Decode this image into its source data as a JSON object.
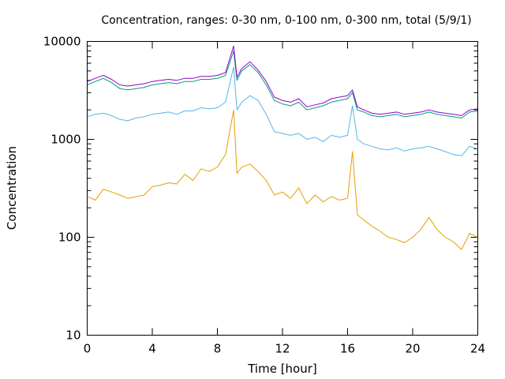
{
  "chart_data": {
    "type": "line",
    "title": "Concentration, ranges: 0-30 nm, 0-100 nm, 0-300 nm, total (5/9/1)",
    "xlabel": "Time [hour]",
    "ylabel": "Concentration",
    "xlim": [
      0,
      24
    ],
    "ylim": [
      10,
      10000
    ],
    "yscale": "log",
    "grid": false,
    "xticks": [
      0,
      4,
      8,
      12,
      16,
      20,
      24
    ],
    "xtick_labels": [
      "0",
      "4",
      "8",
      "12",
      "16",
      "20",
      "24"
    ],
    "yticks": [
      10,
      100,
      1000,
      10000
    ],
    "ytick_labels": [
      "10",
      "100",
      "1000",
      "10000"
    ],
    "x": [
      0,
      0.5,
      1,
      1.5,
      2,
      2.5,
      3,
      3.5,
      4,
      4.5,
      5,
      5.5,
      6,
      6.5,
      7,
      7.5,
      8,
      8.5,
      9,
      9.2,
      9.5,
      10,
      10.5,
      11,
      11.5,
      12,
      12.5,
      13,
      13.5,
      14,
      14.5,
      15,
      15.5,
      16,
      16.3,
      16.6,
      17,
      17.5,
      18,
      18.5,
      19,
      19.5,
      20,
      20.5,
      21,
      21.5,
      22,
      22.5,
      23,
      23.5,
      24
    ],
    "series": [
      {
        "color": "#e69f00",
        "values": [
          260,
          240,
          310,
          290,
          270,
          250,
          260,
          270,
          330,
          340,
          360,
          350,
          440,
          380,
          500,
          470,
          520,
          700,
          2000,
          450,
          520,
          560,
          470,
          380,
          270,
          290,
          250,
          320,
          220,
          270,
          230,
          260,
          240,
          250,
          750,
          170,
          150,
          130,
          115,
          100,
          95,
          88,
          100,
          120,
          160,
          120,
          100,
          90,
          75,
          110,
          100
        ]
      },
      {
        "color": "#56b4e9",
        "values": [
          1700,
          1800,
          1850,
          1750,
          1600,
          1550,
          1650,
          1700,
          1800,
          1850,
          1900,
          1800,
          1950,
          1950,
          2100,
          2050,
          2100,
          2400,
          5500,
          2000,
          2400,
          2800,
          2500,
          1800,
          1200,
          1150,
          1100,
          1150,
          1000,
          1050,
          950,
          1100,
          1050,
          1100,
          2200,
          1000,
          900,
          850,
          800,
          780,
          820,
          760,
          800,
          820,
          850,
          800,
          750,
          700,
          680,
          850,
          800
        ]
      },
      {
        "color": "#009e73",
        "values": [
          3600,
          3900,
          4200,
          3800,
          3300,
          3200,
          3300,
          3400,
          3600,
          3700,
          3800,
          3700,
          3900,
          3900,
          4100,
          4100,
          4200,
          4500,
          8000,
          4000,
          5000,
          5800,
          4800,
          3600,
          2500,
          2300,
          2200,
          2400,
          2000,
          2100,
          2200,
          2400,
          2500,
          2600,
          3000,
          2000,
          1900,
          1750,
          1700,
          1750,
          1800,
          1700,
          1750,
          1800,
          1900,
          1800,
          1750,
          1700,
          1650,
          1900,
          1950
        ]
      },
      {
        "color": "#9400d3",
        "values": [
          3900,
          4200,
          4500,
          4100,
          3600,
          3500,
          3600,
          3700,
          3900,
          4000,
          4100,
          4000,
          4200,
          4200,
          4400,
          4400,
          4500,
          4800,
          9000,
          4300,
          5300,
          6200,
          5100,
          3900,
          2700,
          2500,
          2400,
          2600,
          2150,
          2250,
          2350,
          2600,
          2700,
          2800,
          3200,
          2150,
          2000,
          1850,
          1800,
          1850,
          1900,
          1800,
          1850,
          1900,
          2000,
          1900,
          1850,
          1800,
          1750,
          2000,
          2050
        ]
      }
    ]
  }
}
